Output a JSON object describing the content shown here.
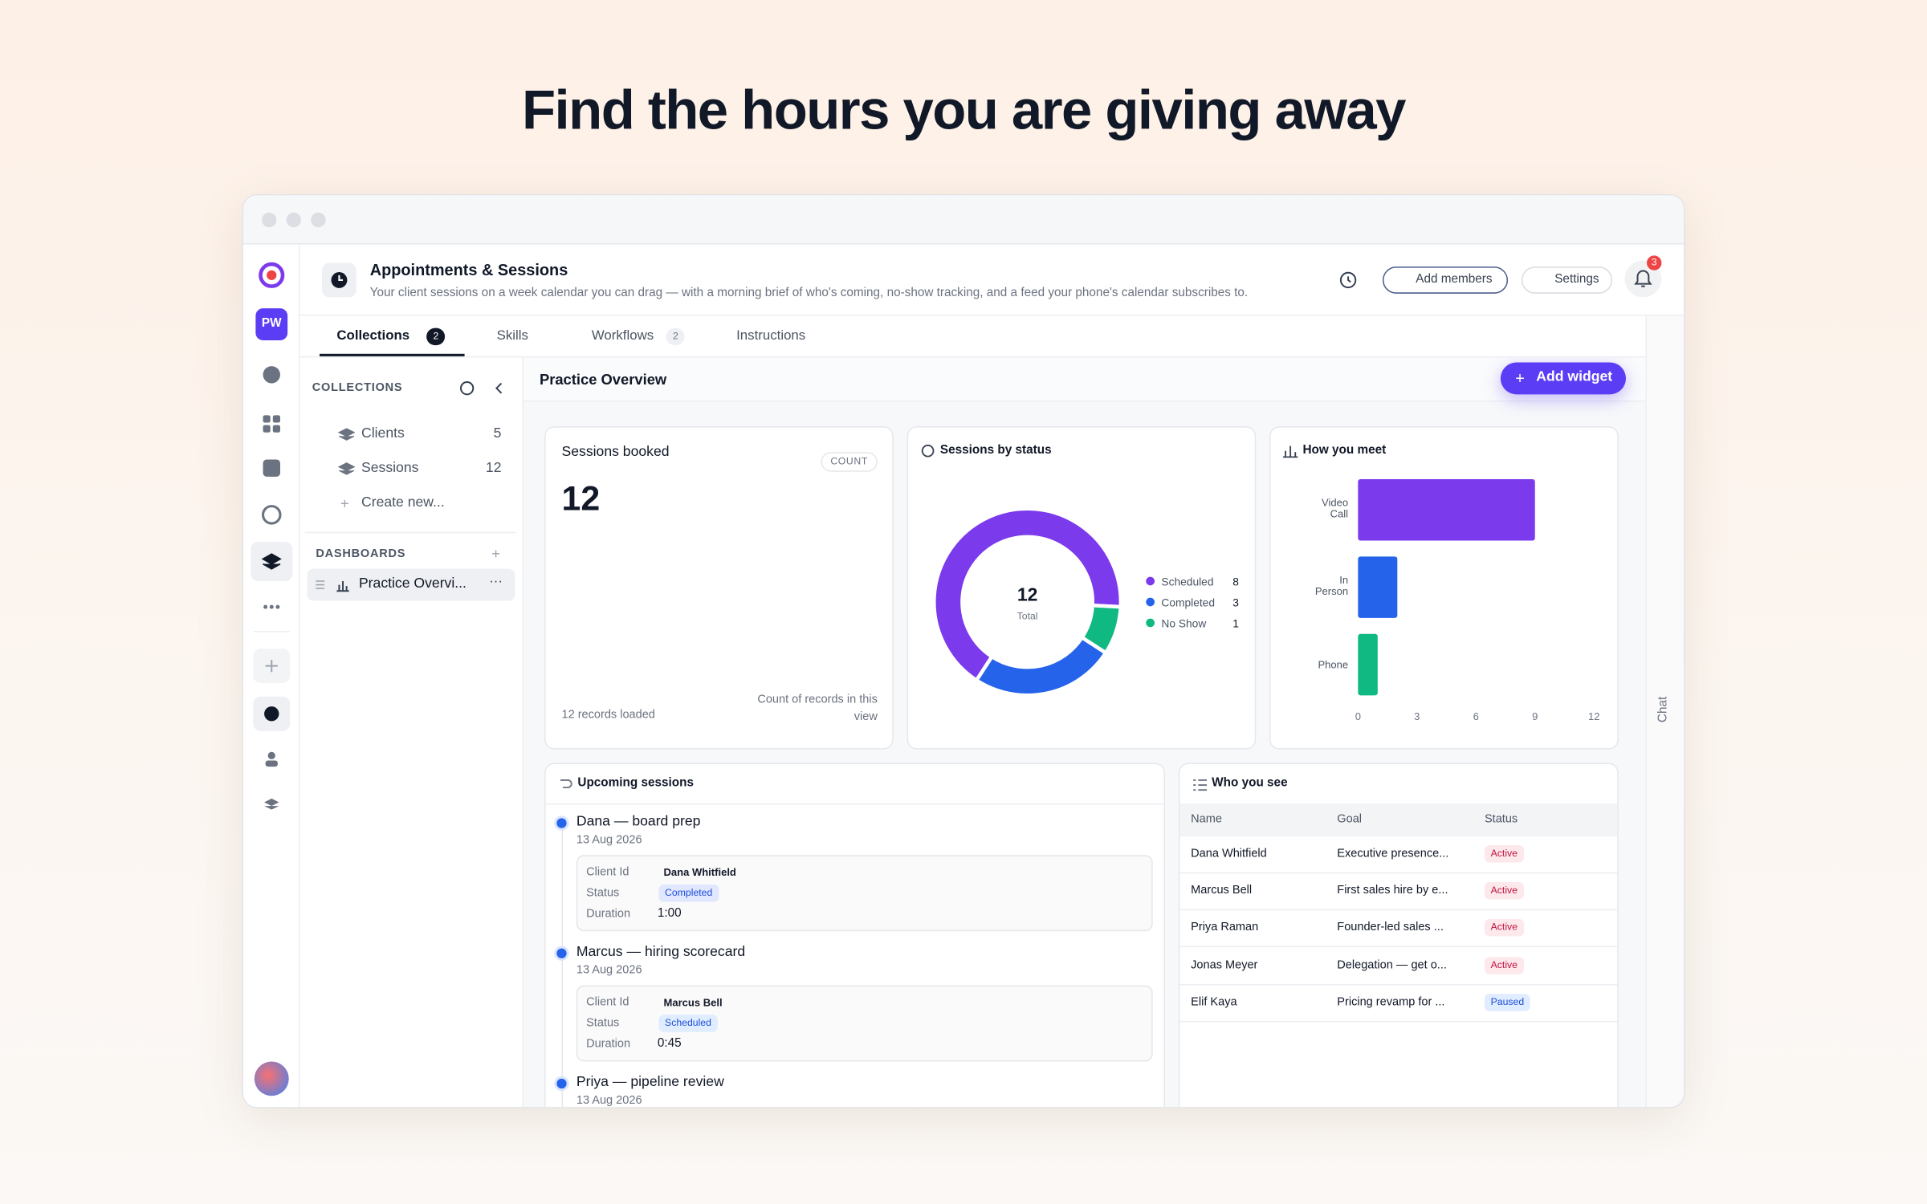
{
  "headline": "Find the hours you are giving away",
  "app": {
    "workspace_initials": "PW",
    "title": "Appointments & Sessions",
    "description": "Your client sessions on a week calendar you can drag — with a morning brief of who's coming, no-show tracking, and a feed your phone's calendar subscribes to.",
    "actions": [
      "Add members",
      "Settings"
    ],
    "notification_count": 3,
    "tabs": [
      {
        "label": "Collections",
        "count": 2
      },
      {
        "label": "Skills"
      },
      {
        "label": "Workflows",
        "count": 2
      },
      {
        "label": "Instructions"
      }
    ],
    "chat_label": "Chat",
    "sidebar": {
      "collections_heading": "COLLECTIONS",
      "collections": [
        {
          "name": "Clients",
          "count": 5
        },
        {
          "name": "Sessions",
          "count": 12
        }
      ],
      "create": "Create new...",
      "dashboards_heading": "DASHBOARDS",
      "dashboards": [
        "Practice Overvi..."
      ]
    },
    "dashboard": {
      "title": "Practice Overview",
      "add_widget": "Add widget",
      "sessions_booked": {
        "title": "Sessions booked",
        "badge": "COUNT",
        "value": 12,
        "footer": "12 records loaded",
        "note": "Count of records in this view"
      },
      "sessions_by_status": {
        "type": "pie",
        "title": "Sessions by status",
        "total": 12,
        "total_label": "Total",
        "categories": [
          "Scheduled",
          "Completed",
          "No Show"
        ],
        "values": [
          8,
          3,
          1
        ],
        "colors": [
          "#7c3aed",
          "#2563eb",
          "#10b981"
        ]
      },
      "how_you_meet": {
        "type": "bar",
        "title": "How you meet",
        "orientation": "horizontal",
        "categories": [
          "Video Call",
          "In Person",
          "Phone"
        ],
        "values": [
          9,
          2,
          1
        ],
        "colors": [
          "#7c3aed",
          "#2563eb",
          "#10b981"
        ],
        "xlim": [
          0,
          12
        ],
        "xticks": [
          0,
          3,
          6,
          9,
          12
        ]
      },
      "upcoming_sessions": {
        "title": "Upcoming sessions",
        "field_labels": [
          "Client Id",
          "Status",
          "Duration"
        ],
        "items": [
          {
            "title": "Dana — board prep",
            "date": "13 Aug 2026",
            "client": "Dana Whitfield",
            "status": "Completed",
            "duration": "1:00"
          },
          {
            "title": "Marcus — hiring scorecard",
            "date": "13 Aug 2026",
            "client": "Marcus Bell",
            "status": "Scheduled",
            "duration": "0:45"
          },
          {
            "title": "Priya — pipeline review",
            "date": "13 Aug 2026"
          }
        ]
      },
      "who_you_see": {
        "title": "Who you see",
        "columns": [
          "Name",
          "Goal",
          "Status"
        ],
        "rows": [
          [
            "Dana Whitfield",
            "Executive presence...",
            "Active"
          ],
          [
            "Marcus Bell",
            "First sales hire by e...",
            "Active"
          ],
          [
            "Priya Raman",
            "Founder-led sales ...",
            "Active"
          ],
          [
            "Jonas Meyer",
            "Delegation — get o...",
            "Active"
          ],
          [
            "Elif Kaya",
            "Pricing revamp for ...",
            "Paused"
          ]
        ]
      }
    }
  }
}
